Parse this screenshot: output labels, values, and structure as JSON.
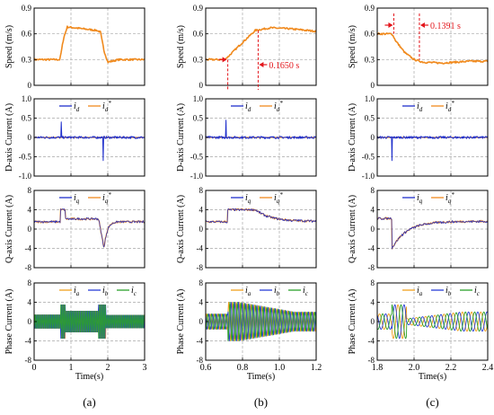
{
  "colors": {
    "speed": "#F08A1E",
    "id": "#1F2FCC",
    "idref": "#F08A1E",
    "iq": "#1F2FCC",
    "iqref": "#F08A1E",
    "ia": "#F0A01E",
    "ib": "#2A3FD8",
    "ic": "#2BA02B",
    "grid": "#A8A8A8",
    "annotation": "#E3141A"
  },
  "chart_data": [
    {
      "type": "line",
      "ylabel": "Speed (m/s)",
      "xlim": [
        0,
        3
      ],
      "ylim": [
        0,
        0.9
      ],
      "yticks": [
        "0",
        "0.3",
        "0.6",
        "0.9"
      ],
      "xticks": [
        "0",
        "1",
        "2",
        "3"
      ],
      "series": [
        {
          "values_x": [
            0,
            0.7,
            0.8,
            0.9,
            1.7,
            1.8,
            1.9,
            2.0,
            2.3,
            3.0
          ],
          "values_y": [
            0.3,
            0.3,
            0.55,
            0.68,
            0.64,
            0.62,
            0.4,
            0.27,
            0.3,
            0.3
          ]
        }
      ]
    },
    {
      "type": "line",
      "ylabel": "Speed (m/s)",
      "xlim": [
        0.6,
        1.2
      ],
      "ylim": [
        0,
        0.9
      ],
      "yticks": [
        "0",
        "0.3",
        "0.6",
        "0.9"
      ],
      "xticks": [
        "0.6",
        "0.8",
        "1.0",
        "1.2"
      ],
      "annotations": [
        "0.1650 s"
      ],
      "series": [
        {
          "values_x": [
            0.6,
            0.7,
            0.72,
            0.8,
            0.87,
            0.95,
            1.05,
            1.2
          ],
          "values_y": [
            0.3,
            0.3,
            0.33,
            0.5,
            0.64,
            0.67,
            0.66,
            0.63
          ]
        }
      ]
    },
    {
      "type": "line",
      "ylabel": "Speed (m/s)",
      "xlim": [
        1.8,
        2.4
      ],
      "ylim": [
        0,
        0.9
      ],
      "yticks": [
        "0",
        "0.3",
        "0.6",
        "0.9"
      ],
      "xticks": [
        "1.8",
        "2.0",
        "2.2",
        "2.4"
      ],
      "annotations": [
        "0.1391 s"
      ],
      "series": [
        {
          "values_x": [
            1.8,
            1.88,
            1.9,
            1.95,
            2.0,
            2.05,
            2.15,
            2.3,
            2.4
          ],
          "values_y": [
            0.6,
            0.6,
            0.52,
            0.38,
            0.3,
            0.27,
            0.26,
            0.28,
            0.28
          ]
        }
      ]
    },
    {
      "type": "line",
      "ylabel": "D-axis Current (A)",
      "xlim": [
        0,
        3
      ],
      "ylim": [
        -1,
        1
      ],
      "yticks": [
        "-1.0",
        "-0.5",
        "0",
        "0.5",
        "1.0"
      ],
      "xticks": [
        "0",
        "1",
        "2",
        "3"
      ],
      "legend": [
        {
          "label": "i",
          "sub": "d",
          "sup": ""
        },
        {
          "label": "i",
          "sub": "d",
          "sup": "*"
        }
      ]
    },
    {
      "type": "line",
      "ylabel": "D-axis Current (A)",
      "xlim": [
        0.6,
        1.2
      ],
      "ylim": [
        -1,
        1
      ],
      "yticks": [
        "-1.0",
        "-0.5",
        "0",
        "0.5",
        "1.0"
      ],
      "xticks": [
        "0.6",
        "0.8",
        "1.0",
        "1.2"
      ],
      "legend": [
        {
          "label": "i",
          "sub": "d",
          "sup": ""
        },
        {
          "label": "i",
          "sub": "d",
          "sup": "*"
        }
      ]
    },
    {
      "type": "line",
      "ylabel": "D-axis Current (A)",
      "xlim": [
        1.8,
        2.4
      ],
      "ylim": [
        -1,
        1
      ],
      "yticks": [
        "-1.0",
        "-0.5",
        "0",
        "0.5",
        "1.0"
      ],
      "xticks": [
        "1.8",
        "2.0",
        "2.2",
        "2.4"
      ],
      "legend": [
        {
          "label": "i",
          "sub": "d",
          "sup": ""
        },
        {
          "label": "i",
          "sub": "d",
          "sup": "*"
        }
      ]
    },
    {
      "type": "line",
      "ylabel": "Q-axis Current (A)",
      "xlim": [
        0,
        3
      ],
      "ylim": [
        -8,
        8
      ],
      "yticks": [
        "-8",
        "-4",
        "0",
        "4",
        "8"
      ],
      "xticks": [
        "0",
        "1",
        "2",
        "3"
      ],
      "legend": [
        {
          "label": "i",
          "sub": "q",
          "sup": ""
        },
        {
          "label": "i",
          "sub": "q",
          "sup": "*"
        }
      ]
    },
    {
      "type": "line",
      "ylabel": "Q-axis Current (A)",
      "xlim": [
        0.6,
        1.2
      ],
      "ylim": [
        -8,
        8
      ],
      "yticks": [
        "-8",
        "-4",
        "0",
        "4",
        "8"
      ],
      "xticks": [
        "0.6",
        "0.8",
        "1.0",
        "1.2"
      ],
      "legend": [
        {
          "label": "i",
          "sub": "q",
          "sup": ""
        },
        {
          "label": "i",
          "sub": "q",
          "sup": "*"
        }
      ]
    },
    {
      "type": "line",
      "ylabel": "Q-axis Current (A)",
      "xlim": [
        1.8,
        2.4
      ],
      "ylim": [
        -8,
        8
      ],
      "yticks": [
        "-8",
        "-4",
        "0",
        "4",
        "8"
      ],
      "xticks": [
        "1.8",
        "2.0",
        "2.2",
        "2.4"
      ],
      "legend": [
        {
          "label": "i",
          "sub": "q",
          "sup": ""
        },
        {
          "label": "i",
          "sub": "q",
          "sup": "*"
        }
      ]
    },
    {
      "type": "line",
      "ylabel": "Phase Current (A)",
      "xlim": [
        0,
        3
      ],
      "ylim": [
        -8,
        8
      ],
      "yticks": [
        "-8",
        "-4",
        "0",
        "4",
        "8"
      ],
      "xticks": [
        "0",
        "1",
        "2",
        "3"
      ],
      "xlabel": "Time(s)",
      "legend": [
        {
          "label": "i",
          "sub": "a",
          "sup": ""
        },
        {
          "label": "i",
          "sub": "b",
          "sup": ""
        },
        {
          "label": "i",
          "sub": "c",
          "sup": ""
        }
      ]
    },
    {
      "type": "line",
      "ylabel": "Phase Current (A)",
      "xlim": [
        0.6,
        1.2
      ],
      "ylim": [
        -8,
        8
      ],
      "yticks": [
        "-8",
        "-4",
        "0",
        "4",
        "8"
      ],
      "xticks": [
        "0.6",
        "0.8",
        "1.0",
        "1.2"
      ],
      "xlabel": "Time(s)",
      "legend": [
        {
          "label": "i",
          "sub": "a",
          "sup": ""
        },
        {
          "label": "i",
          "sub": "b",
          "sup": ""
        },
        {
          "label": "i",
          "sub": "c",
          "sup": ""
        }
      ]
    },
    {
      "type": "line",
      "ylabel": "Phase Current (A)",
      "xlim": [
        1.8,
        2.4
      ],
      "ylim": [
        -8,
        8
      ],
      "yticks": [
        "-8",
        "-4",
        "0",
        "4",
        "8"
      ],
      "xticks": [
        "1.8",
        "2.0",
        "2.2",
        "2.4"
      ],
      "xlabel": "Time(s)",
      "legend": [
        {
          "label": "i",
          "sub": "a",
          "sup": ""
        },
        {
          "label": "i",
          "sub": "b",
          "sup": ""
        },
        {
          "label": "i",
          "sub": "c",
          "sup": ""
        }
      ]
    }
  ],
  "columns": [
    {
      "caption": "(a)"
    },
    {
      "caption": "(b)"
    },
    {
      "caption": "(c)"
    }
  ]
}
